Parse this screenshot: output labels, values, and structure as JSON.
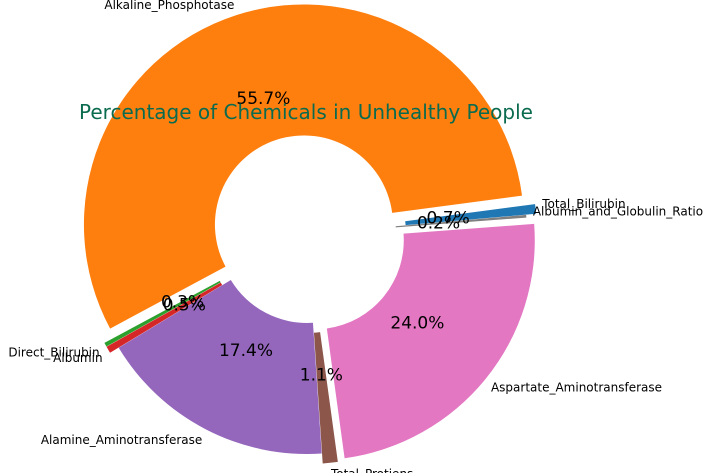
{
  "chart_data": {
    "type": "pie",
    "donut": true,
    "title": "Percentage of Chemicals in Unhealthy People",
    "title_color": "#0b6b4f",
    "start_angle_deg": 5,
    "direction": "counterclockwise",
    "slices": [
      {
        "label": "Total_Bilirubin",
        "value": 0.7,
        "pct_text": "0.7%",
        "color": "#1f77b4",
        "exploded": true
      },
      {
        "label": "Alkaline_Phosphotase",
        "value": 55.7,
        "pct_text": "55.7%",
        "color": "#ff7f0e",
        "exploded": true
      },
      {
        "label": "Direct_Bilirubin",
        "value": 0.3,
        "pct_text": "0.3%",
        "color": "#2ca02c",
        "exploded": true
      },
      {
        "label": "Albumin",
        "value": 0.5,
        "pct_text": "0.5%",
        "color": "#d62728",
        "exploded": true
      },
      {
        "label": "Alamine_Aminotransferase",
        "value": 17.4,
        "pct_text": "17.4%",
        "color": "#9467bd",
        "exploded": false
      },
      {
        "label": "Total_Protiens",
        "value": 1.1,
        "pct_text": "1.1%",
        "color": "#8c564b",
        "exploded": true
      },
      {
        "label": "Aspartate_Aminotransferase",
        "value": 24.0,
        "pct_text": "24.0%",
        "color": "#e377c2",
        "exploded": true
      },
      {
        "label": "Albumin_and_Globulin_Ratio",
        "value": 0.2,
        "pct_text": "0.2%",
        "color": "#7f7f7f",
        "exploded": false
      }
    ]
  }
}
